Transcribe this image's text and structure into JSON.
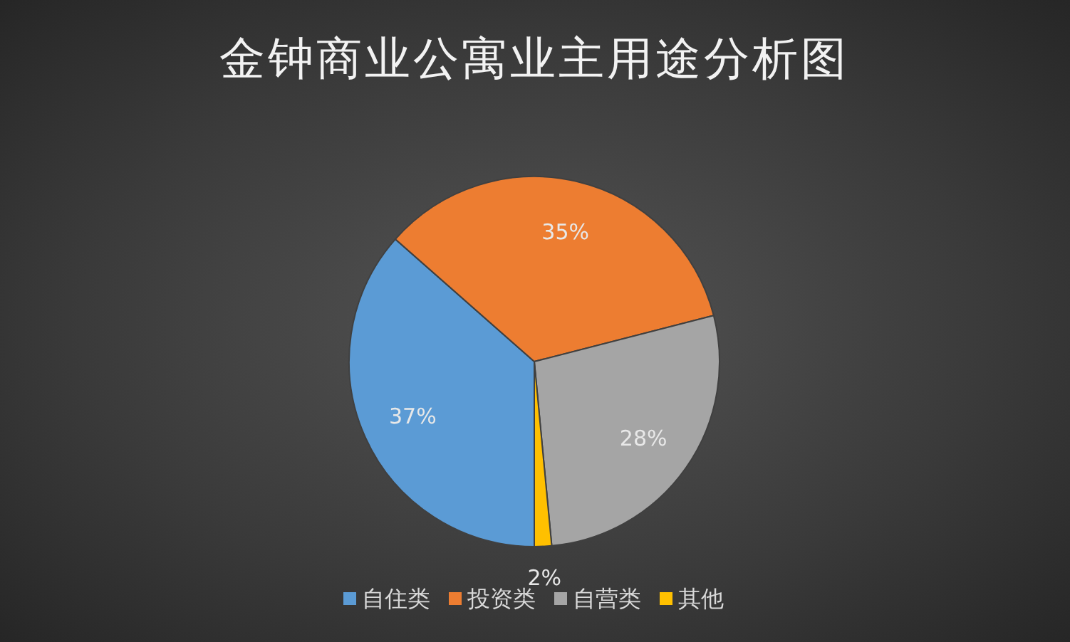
{
  "chart_data": {
    "type": "pie",
    "title": "金钟商业公寓业主用途分析图",
    "categories": [
      "自住类",
      "投资类",
      "自营类",
      "其他"
    ],
    "values": [
      36.5,
      34.5,
      27.5,
      1.5
    ],
    "value_labels": [
      "37%",
      "35%",
      "28%",
      "2%"
    ],
    "colors": [
      "#5b9bd5",
      "#ed7d31",
      "#a5a5a5",
      "#ffc000"
    ],
    "legend": "bottom"
  }
}
